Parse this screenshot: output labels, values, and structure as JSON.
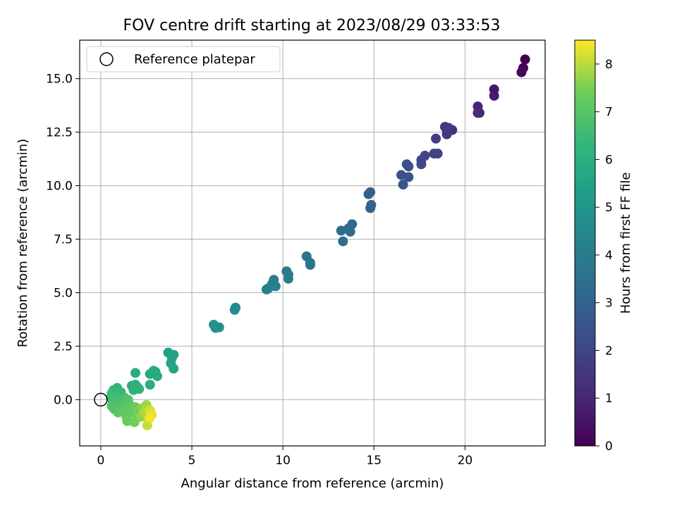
{
  "chart_data": {
    "type": "scatter",
    "title": "FOV centre drift starting at 2023/08/29 03:33:53",
    "xlabel": "Angular distance from reference (arcmin)",
    "ylabel": "Rotation from reference (arcmin)",
    "xlim": [
      -1.16,
      24.4
    ],
    "ylim": [
      -2.16,
      16.8
    ],
    "xticks": [
      "0",
      "5",
      "10",
      "15",
      "20"
    ],
    "yticks": [
      "0.0",
      "2.5",
      "5.0",
      "7.5",
      "10.0",
      "12.5",
      "15.0"
    ],
    "grid": true,
    "legend": {
      "position": "top-left",
      "entries": [
        "Reference platepar"
      ]
    },
    "reference_point": {
      "x": 0,
      "y": 0
    },
    "colorbar": {
      "label": "Hours from first FF file",
      "colormap": "viridis",
      "range": [
        0,
        8.5
      ],
      "ticks": [
        "0",
        "1",
        "2",
        "3",
        "4",
        "5",
        "6",
        "7",
        "8"
      ]
    },
    "points": [
      {
        "x": 23.3,
        "y": 15.9,
        "t": 0.0
      },
      {
        "x": 23.2,
        "y": 15.5,
        "t": 0.1
      },
      {
        "x": 23.1,
        "y": 15.3,
        "t": 0.2
      },
      {
        "x": 21.6,
        "y": 14.5,
        "t": 0.6
      },
      {
        "x": 21.6,
        "y": 14.2,
        "t": 0.7
      },
      {
        "x": 20.7,
        "y": 13.7,
        "t": 1.0
      },
      {
        "x": 20.7,
        "y": 13.4,
        "t": 1.1
      },
      {
        "x": 20.8,
        "y": 13.4,
        "t": 1.15
      },
      {
        "x": 19.3,
        "y": 12.6,
        "t": 1.4
      },
      {
        "x": 18.9,
        "y": 12.75,
        "t": 1.5
      },
      {
        "x": 19.1,
        "y": 12.7,
        "t": 1.55
      },
      {
        "x": 19.0,
        "y": 12.4,
        "t": 1.6
      },
      {
        "x": 19.0,
        "y": 12.6,
        "t": 1.62
      },
      {
        "x": 18.4,
        "y": 12.2,
        "t": 1.75
      },
      {
        "x": 18.3,
        "y": 11.5,
        "t": 1.9
      },
      {
        "x": 18.5,
        "y": 11.5,
        "t": 1.92
      },
      {
        "x": 17.8,
        "y": 11.4,
        "t": 2.0
      },
      {
        "x": 17.6,
        "y": 11.2,
        "t": 2.05
      },
      {
        "x": 17.6,
        "y": 11.0,
        "t": 2.1
      },
      {
        "x": 16.8,
        "y": 11.0,
        "t": 2.3
      },
      {
        "x": 16.9,
        "y": 10.9,
        "t": 2.35
      },
      {
        "x": 16.5,
        "y": 10.5,
        "t": 2.4
      },
      {
        "x": 16.9,
        "y": 10.4,
        "t": 2.45
      },
      {
        "x": 16.6,
        "y": 10.05,
        "t": 2.5
      },
      {
        "x": 14.8,
        "y": 9.7,
        "t": 2.85
      },
      {
        "x": 14.7,
        "y": 9.6,
        "t": 2.9
      },
      {
        "x": 14.85,
        "y": 9.1,
        "t": 2.95
      },
      {
        "x": 14.8,
        "y": 8.95,
        "t": 3.0
      },
      {
        "x": 13.8,
        "y": 8.2,
        "t": 3.2
      },
      {
        "x": 13.6,
        "y": 8.0,
        "t": 3.25
      },
      {
        "x": 13.2,
        "y": 7.9,
        "t": 3.3
      },
      {
        "x": 13.7,
        "y": 7.85,
        "t": 3.32
      },
      {
        "x": 13.3,
        "y": 7.4,
        "t": 3.35
      },
      {
        "x": 11.3,
        "y": 6.7,
        "t": 3.65
      },
      {
        "x": 11.5,
        "y": 6.4,
        "t": 3.7
      },
      {
        "x": 11.5,
        "y": 6.3,
        "t": 3.72
      },
      {
        "x": 10.2,
        "y": 6.0,
        "t": 3.9
      },
      {
        "x": 10.3,
        "y": 5.85,
        "t": 3.95
      },
      {
        "x": 10.3,
        "y": 5.65,
        "t": 4.0
      },
      {
        "x": 9.5,
        "y": 5.6,
        "t": 4.05
      },
      {
        "x": 9.4,
        "y": 5.4,
        "t": 4.1
      },
      {
        "x": 9.6,
        "y": 5.3,
        "t": 4.12
      },
      {
        "x": 9.2,
        "y": 5.2,
        "t": 4.15
      },
      {
        "x": 9.1,
        "y": 5.15,
        "t": 4.17
      },
      {
        "x": 7.4,
        "y": 4.3,
        "t": 4.5
      },
      {
        "x": 7.35,
        "y": 4.2,
        "t": 4.55
      },
      {
        "x": 6.2,
        "y": 3.5,
        "t": 4.8
      },
      {
        "x": 6.3,
        "y": 3.35,
        "t": 4.85
      },
      {
        "x": 6.5,
        "y": 3.38,
        "t": 4.9
      },
      {
        "x": 3.7,
        "y": 2.2,
        "t": 5.4
      },
      {
        "x": 4.0,
        "y": 2.1,
        "t": 5.45
      },
      {
        "x": 3.9,
        "y": 1.95,
        "t": 5.5
      },
      {
        "x": 3.85,
        "y": 1.7,
        "t": 5.55
      },
      {
        "x": 4.0,
        "y": 1.45,
        "t": 5.6
      },
      {
        "x": 2.9,
        "y": 1.35,
        "t": 5.75
      },
      {
        "x": 3.0,
        "y": 1.3,
        "t": 5.77
      },
      {
        "x": 2.7,
        "y": 1.2,
        "t": 5.8
      },
      {
        "x": 3.1,
        "y": 1.1,
        "t": 5.82
      },
      {
        "x": 1.9,
        "y": 1.25,
        "t": 5.85
      },
      {
        "x": 2.7,
        "y": 0.7,
        "t": 5.9
      },
      {
        "x": 1.7,
        "y": 0.65,
        "t": 6.0
      },
      {
        "x": 1.9,
        "y": 0.7,
        "t": 6.02
      },
      {
        "x": 2.0,
        "y": 0.6,
        "t": 6.05
      },
      {
        "x": 2.1,
        "y": 0.5,
        "t": 6.08
      },
      {
        "x": 1.8,
        "y": 0.45,
        "t": 6.1
      },
      {
        "x": 0.9,
        "y": 0.55,
        "t": 6.3
      },
      {
        "x": 0.7,
        "y": 0.45,
        "t": 6.35
      },
      {
        "x": 1.1,
        "y": 0.35,
        "t": 6.4
      },
      {
        "x": 0.6,
        "y": 0.3,
        "t": 6.45
      },
      {
        "x": 0.8,
        "y": 0.2,
        "t": 6.5
      },
      {
        "x": 0.55,
        "y": 0.1,
        "t": 6.55
      },
      {
        "x": 1.0,
        "y": 0.05,
        "t": 6.6
      },
      {
        "x": 0.65,
        "y": -0.05,
        "t": 6.65
      },
      {
        "x": 1.3,
        "y": 0.1,
        "t": 6.7
      },
      {
        "x": 0.8,
        "y": -0.15,
        "t": 6.75
      },
      {
        "x": 1.2,
        "y": -0.2,
        "t": 6.8
      },
      {
        "x": 0.6,
        "y": -0.3,
        "t": 6.85
      },
      {
        "x": 1.0,
        "y": -0.35,
        "t": 6.9
      },
      {
        "x": 1.5,
        "y": 0.0,
        "t": 6.92
      },
      {
        "x": 0.75,
        "y": -0.45,
        "t": 6.95
      },
      {
        "x": 1.4,
        "y": -0.4,
        "t": 7.0
      },
      {
        "x": 0.95,
        "y": -0.6,
        "t": 7.05
      },
      {
        "x": 1.6,
        "y": -0.25,
        "t": 7.1
      },
      {
        "x": 1.2,
        "y": -0.55,
        "t": 7.15
      },
      {
        "x": 1.7,
        "y": -0.6,
        "t": 7.2
      },
      {
        "x": 1.4,
        "y": -0.8,
        "t": 7.25
      },
      {
        "x": 1.45,
        "y": -1.0,
        "t": 7.3
      },
      {
        "x": 1.9,
        "y": -0.35,
        "t": 7.35
      },
      {
        "x": 2.0,
        "y": -0.7,
        "t": 7.4
      },
      {
        "x": 1.85,
        "y": -1.05,
        "t": 7.45
      },
      {
        "x": 2.1,
        "y": -0.5,
        "t": 7.5
      },
      {
        "x": 2.3,
        "y": -0.4,
        "t": 7.6
      },
      {
        "x": 2.2,
        "y": -0.8,
        "t": 7.7
      },
      {
        "x": 2.5,
        "y": -0.25,
        "t": 7.8
      },
      {
        "x": 2.4,
        "y": -0.6,
        "t": 7.9
      },
      {
        "x": 2.6,
        "y": -0.9,
        "t": 8.0
      },
      {
        "x": 2.55,
        "y": -1.2,
        "t": 8.1
      },
      {
        "x": 2.7,
        "y": -0.5,
        "t": 8.2
      },
      {
        "x": 2.8,
        "y": -0.7,
        "t": 8.3
      },
      {
        "x": 2.7,
        "y": -0.85,
        "t": 8.4
      }
    ]
  }
}
